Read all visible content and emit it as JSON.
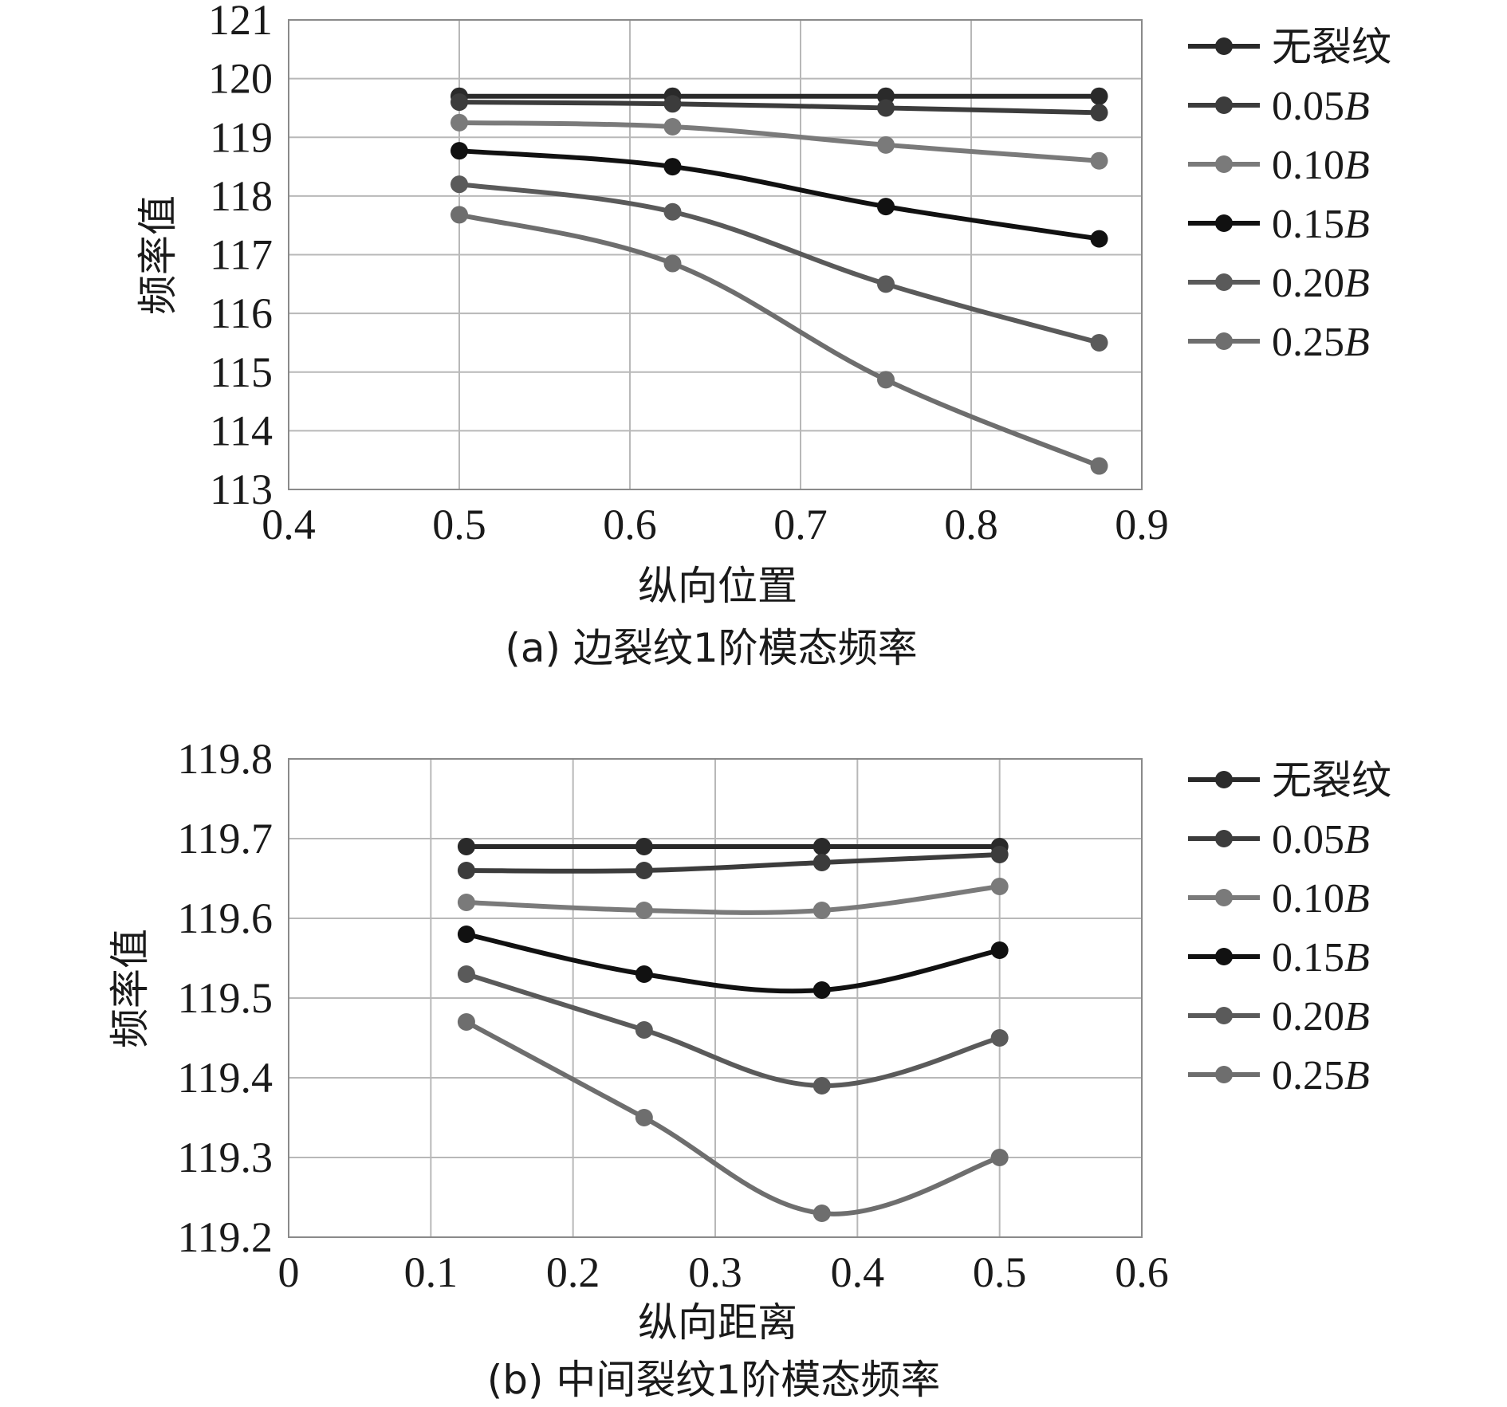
{
  "series_colors": [
    "#2a2a2a",
    "#3c3c3c",
    "#7a7a7a",
    "#111111",
    "#5a5a5a",
    "#6e6e6e"
  ],
  "chart_data": [
    {
      "type": "line",
      "caption": "(a) 边裂纹1阶模态频率",
      "xlabel": "纵向位置",
      "ylabel": "频率值",
      "xlim": [
        0.4,
        0.9
      ],
      "ylim": [
        113,
        121
      ],
      "xticks": [
        "0.4",
        "0.5",
        "0.6",
        "0.7",
        "0.8",
        "0.9"
      ],
      "yticks": [
        "113",
        "114",
        "115",
        "116",
        "117",
        "118",
        "119",
        "120",
        "121"
      ],
      "x": [
        0.5,
        0.625,
        0.75,
        0.875
      ],
      "series": [
        {
          "name": "无裂纹",
          "values": [
            119.7,
            119.7,
            119.7,
            119.7
          ]
        },
        {
          "name": "0.05B",
          "values": [
            119.6,
            119.57,
            119.5,
            119.42
          ]
        },
        {
          "name": "0.10B",
          "values": [
            119.25,
            119.18,
            118.87,
            118.6
          ]
        },
        {
          "name": "0.15B",
          "values": [
            118.77,
            118.5,
            117.82,
            117.27
          ]
        },
        {
          "name": "0.20B",
          "values": [
            118.2,
            117.73,
            116.5,
            115.5
          ]
        },
        {
          "name": "0.25B",
          "values": [
            117.68,
            116.85,
            114.87,
            113.4
          ]
        }
      ],
      "legend_position": "right"
    },
    {
      "type": "line",
      "caption": "(b) 中间裂纹1阶模态频率",
      "xlabel": "纵向距离",
      "ylabel": "频率值",
      "xlim": [
        0,
        0.6
      ],
      "ylim": [
        119.2,
        119.8
      ],
      "xticks": [
        "0",
        "0.1",
        "0.2",
        "0.3",
        "0.4",
        "0.5",
        "0.6"
      ],
      "yticks": [
        "119.2",
        "119.3",
        "119.4",
        "119.5",
        "119.6",
        "119.7",
        "119.8"
      ],
      "x": [
        0.125,
        0.25,
        0.375,
        0.5
      ],
      "series": [
        {
          "name": "无裂纹",
          "values": [
            119.69,
            119.69,
            119.69,
            119.69
          ]
        },
        {
          "name": "0.05B",
          "values": [
            119.66,
            119.66,
            119.67,
            119.68
          ]
        },
        {
          "name": "0.10B",
          "values": [
            119.62,
            119.61,
            119.61,
            119.64
          ]
        },
        {
          "name": "0.15B",
          "values": [
            119.58,
            119.53,
            119.51,
            119.56
          ]
        },
        {
          "name": "0.20B",
          "values": [
            119.53,
            119.46,
            119.39,
            119.45
          ]
        },
        {
          "name": "0.25B",
          "values": [
            119.47,
            119.35,
            119.23,
            119.3
          ]
        }
      ],
      "legend_position": "right"
    }
  ]
}
